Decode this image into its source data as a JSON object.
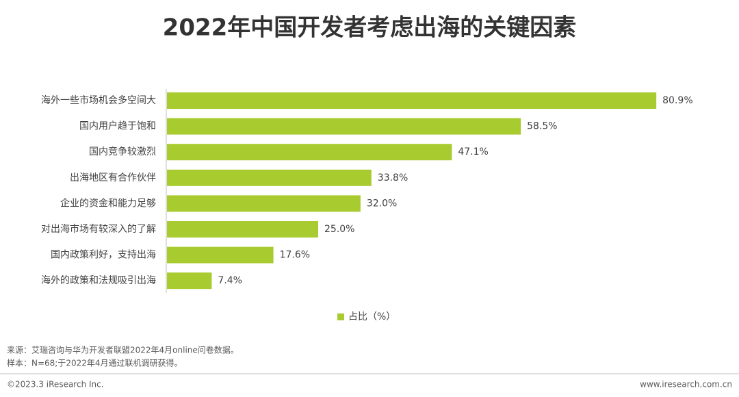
{
  "chart_data": {
    "type": "bar",
    "orientation": "horizontal",
    "title": "2022年中国开发者考虑出海的关键因素",
    "categories": [
      "海外一些市场机会多空间大",
      "国内用户趋于饱和",
      "国内竞争较激烈",
      "出海地区有合作伙伴",
      "企业的资金和能力足够",
      "对出海市场有较深入的了解",
      "国内政策利好，支持出海",
      "海外的政策和法规吸引出海"
    ],
    "series": [
      {
        "name": "占比（%）",
        "color": "#a8cb2f",
        "values": [
          80.9,
          58.5,
          47.1,
          33.8,
          32.0,
          25.0,
          17.6,
          7.4
        ],
        "value_labels": [
          "80.9%",
          "58.5%",
          "47.1%",
          "33.8%",
          "32.0%",
          "25.0%",
          "17.6%",
          "7.4%"
        ]
      }
    ],
    "legend": "bottom"
  },
  "footer": {
    "source": "来源：艾瑞咨询与华为开发者联盟2022年4月online问卷数据。",
    "sample": "样本：N=68;于2022年4月通过联机调研获得。",
    "copyright": "©2023.3 iResearch Inc.",
    "website": "www.iresearch.com.cn"
  }
}
